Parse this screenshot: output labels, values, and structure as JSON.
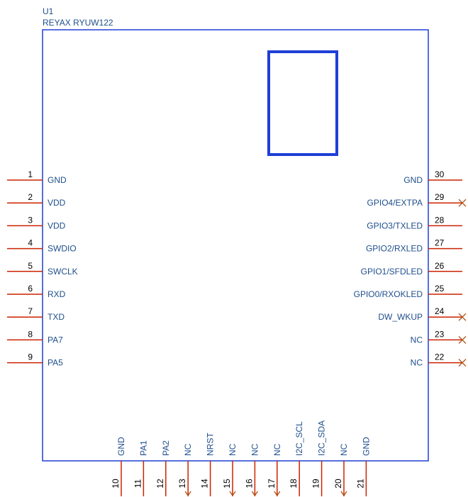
{
  "component": {
    "designator": "U1",
    "part_name": "REYAX RYUW122"
  },
  "colors": {
    "body_outline": "#1f3fd6",
    "antenna_box": "#1f3fd6",
    "pin_line": "#cc2200",
    "label_text": "#1f4e8c",
    "number_text": "#000000",
    "nc_marker": "#b05010"
  },
  "pins": {
    "left": [
      {
        "number": "1",
        "name": "GND"
      },
      {
        "number": "2",
        "name": "VDD"
      },
      {
        "number": "3",
        "name": "VDD"
      },
      {
        "number": "4",
        "name": "SWDIO"
      },
      {
        "number": "5",
        "name": "SWCLK"
      },
      {
        "number": "6",
        "name": "RXD"
      },
      {
        "number": "7",
        "name": "TXD"
      },
      {
        "number": "8",
        "name": "PA7"
      },
      {
        "number": "9",
        "name": "PA5"
      }
    ],
    "right": [
      {
        "number": "30",
        "name": "GND",
        "no_connect": false
      },
      {
        "number": "29",
        "name": "GPIO4/EXTPA",
        "no_connect": true
      },
      {
        "number": "28",
        "name": "GPIO3/TXLED",
        "no_connect": false
      },
      {
        "number": "27",
        "name": "GPIO2/RXLED",
        "no_connect": false
      },
      {
        "number": "26",
        "name": "GPIO1/SFDLED",
        "no_connect": false
      },
      {
        "number": "25",
        "name": "GPIO0/RXOKLED",
        "no_connect": false
      },
      {
        "number": "24",
        "name": "DW_WKUP",
        "no_connect": true
      },
      {
        "number": "23",
        "name": "NC",
        "no_connect": true
      },
      {
        "number": "22",
        "name": "NC",
        "no_connect": true
      }
    ],
    "bottom": [
      {
        "number": "10",
        "name": "GND",
        "no_connect": false
      },
      {
        "number": "11",
        "name": "PA1",
        "no_connect": false
      },
      {
        "number": "12",
        "name": "PA2",
        "no_connect": false
      },
      {
        "number": "13",
        "name": "NC",
        "no_connect": true
      },
      {
        "number": "14",
        "name": "NRST",
        "no_connect": false
      },
      {
        "number": "15",
        "name": "NC",
        "no_connect": true
      },
      {
        "number": "16",
        "name": "NC",
        "no_connect": true
      },
      {
        "number": "17",
        "name": "NC",
        "no_connect": true
      },
      {
        "number": "18",
        "name": "I2C_SCL",
        "no_connect": false
      },
      {
        "number": "19",
        "name": "I2C_SDA",
        "no_connect": false
      },
      {
        "number": "20",
        "name": "NC",
        "no_connect": true
      },
      {
        "number": "21",
        "name": "GND",
        "no_connect": false
      }
    ]
  }
}
